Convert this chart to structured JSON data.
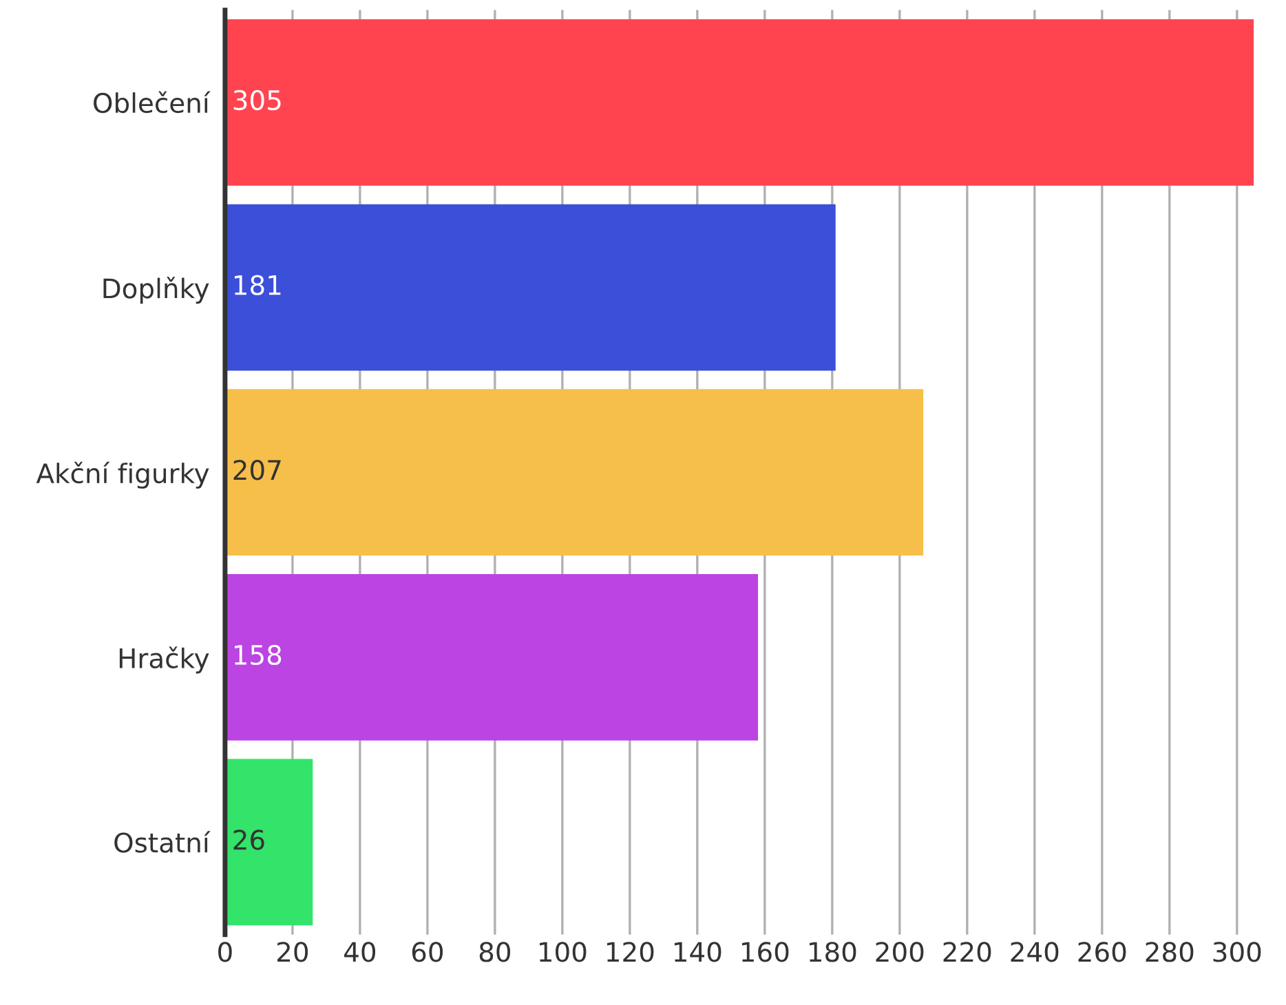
{
  "chart_data": {
    "type": "bar",
    "orientation": "horizontal",
    "categories": [
      "Oblečení",
      "Doplňky",
      "Akční figurky",
      "Hračky",
      "Ostatní"
    ],
    "values": [
      305,
      181,
      207,
      158,
      26
    ],
    "colors": [
      "#ff4450",
      "#3b4fd9",
      "#f6bf4a",
      "#bb44e3",
      "#33e36a"
    ],
    "xlim": [
      0,
      305
    ],
    "xticks": [
      0,
      20,
      40,
      60,
      80,
      100,
      120,
      140,
      160,
      180,
      200,
      220,
      240,
      260,
      280,
      300
    ],
    "grid": "x",
    "data_labels": true
  }
}
